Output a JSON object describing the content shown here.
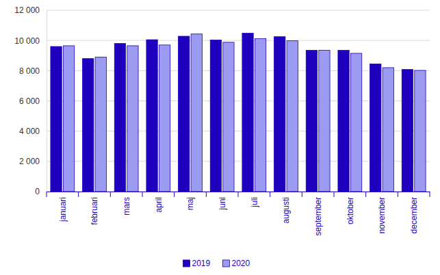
{
  "chart_data": {
    "type": "bar",
    "categories": [
      "januari",
      "februari",
      "mars",
      "april",
      "maj",
      "juni",
      "juli",
      "augusti",
      "september",
      "oktober",
      "november",
      "december"
    ],
    "series": [
      {
        "name": "2019",
        "color": "#1e00be",
        "values": [
          9600,
          8800,
          9800,
          10050,
          10280,
          10030,
          10480,
          10250,
          9350,
          9350,
          8450,
          8080
        ]
      },
      {
        "name": "2020",
        "color": "#9b9bf2",
        "values": [
          9650,
          8900,
          9650,
          9700,
          10430,
          9880,
          10120,
          9980,
          9350,
          9150,
          8200,
          8020
        ]
      }
    ],
    "ylim": [
      0,
      12000
    ],
    "yticks": [
      0,
      {
        "value": 2000,
        "label": "2 000"
      },
      {
        "value": 4000,
        "label": "4 000"
      },
      {
        "value": 6000,
        "label": "6 000"
      },
      {
        "value": 8000,
        "label": "8 000"
      },
      {
        "value": 10000,
        "label": "10 000"
      },
      {
        "value": 12000,
        "label": "12 000"
      }
    ],
    "grid": true,
    "legend": "bottom"
  }
}
